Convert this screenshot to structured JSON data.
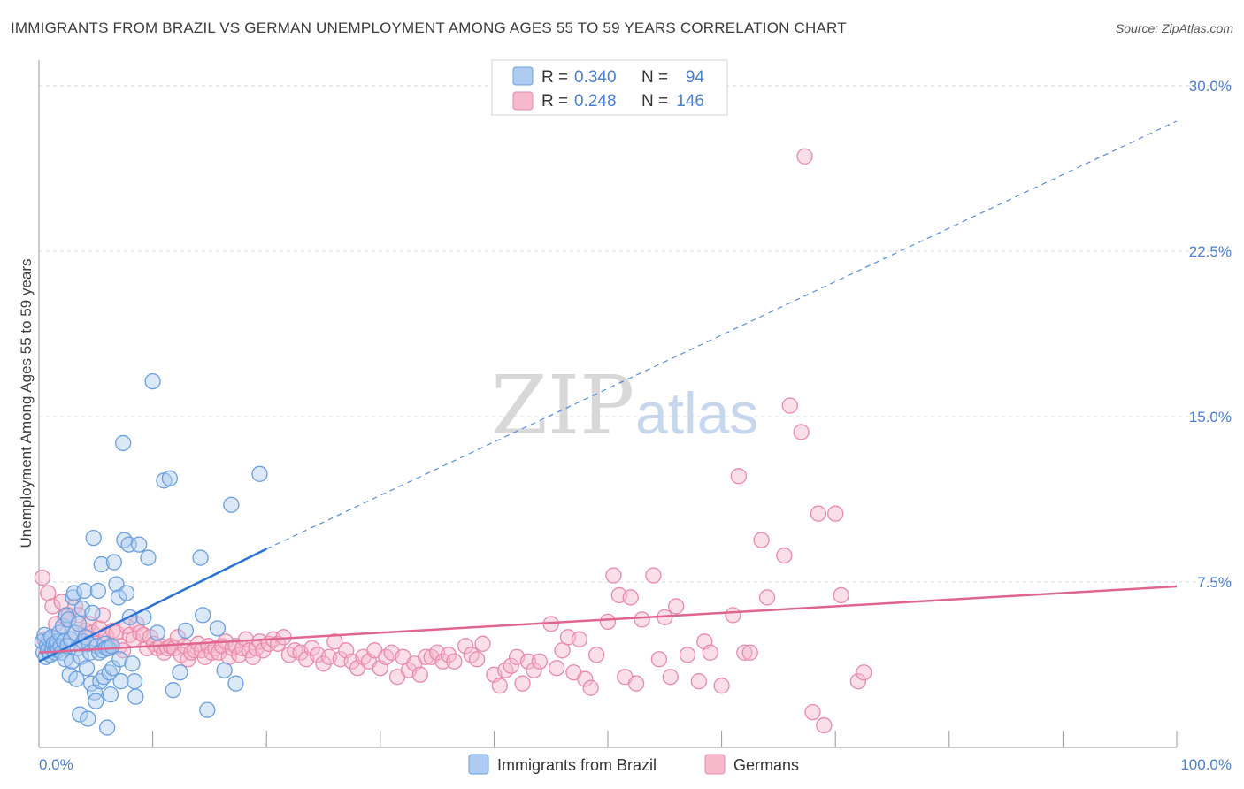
{
  "title": "IMMIGRANTS FROM BRAZIL VS GERMAN UNEMPLOYMENT AMONG AGES 55 TO 59 YEARS CORRELATION CHART",
  "source": "Source: ZipAtlas.com",
  "watermark": {
    "zip": "ZIP",
    "atlas": "atlas"
  },
  "colors": {
    "blue_fill": "#aecbf0",
    "blue_stroke": "#6a9fe0",
    "blue_line": "#2a72d6",
    "pink_fill": "#f6b9cc",
    "pink_stroke": "#e98aa8",
    "pink_line": "#e06590",
    "tick": "#4a7fd0",
    "grid": "#d8d8d8"
  },
  "legend": {
    "rows": [
      {
        "r_label": "R =",
        "r_value": "0.340",
        "n_label": "N =",
        "n_value": "94"
      },
      {
        "r_label": "R =",
        "r_value": "0.248",
        "n_label": "N =",
        "n_value": "146"
      }
    ]
  },
  "chart_data": {
    "type": "scatter",
    "title": "IMMIGRANTS FROM BRAZIL VS GERMAN UNEMPLOYMENT AMONG AGES 55 TO 59 YEARS CORRELATION CHART",
    "xlabel": "",
    "ylabel": "Unemployment Among Ages 55 to 59 years",
    "xlim": [
      0,
      100
    ],
    "ylim": [
      0,
      30
    ],
    "x_tick_labels": {
      "min": "0.0%",
      "max": "100.0%"
    },
    "y_ticks": [
      7.5,
      15.0,
      22.5,
      30.0
    ],
    "y_tick_labels": [
      "7.5%",
      "15.0%",
      "22.5%",
      "30.0%"
    ],
    "grid": true,
    "series": [
      {
        "name": "Immigrants from Brazil",
        "color": "blue",
        "trend": {
          "x0": 0,
          "y0": 3.9,
          "x1": 20,
          "y1": 9.0,
          "dashed_to_x": 100,
          "dashed_to_y": 28.4
        },
        "points": [
          [
            0.3,
            4.8
          ],
          [
            0.4,
            4.3
          ],
          [
            0.5,
            5.1
          ],
          [
            0.6,
            4.1
          ],
          [
            0.7,
            4.6
          ],
          [
            0.8,
            4.4
          ],
          [
            0.9,
            4.9
          ],
          [
            1.0,
            4.2
          ],
          [
            1.1,
            5.0
          ],
          [
            1.2,
            4.5
          ],
          [
            1.3,
            4.7
          ],
          [
            1.4,
            4.3
          ],
          [
            1.5,
            4.6
          ],
          [
            1.6,
            4.8
          ],
          [
            1.7,
            4.4
          ],
          [
            1.8,
            5.2
          ],
          [
            1.9,
            4.6
          ],
          [
            2.0,
            4.3
          ],
          [
            2.1,
            5.5
          ],
          [
            2.2,
            4.8
          ],
          [
            2.3,
            4.0
          ],
          [
            2.4,
            6.0
          ],
          [
            2.5,
            4.6
          ],
          [
            2.6,
            5.8
          ],
          [
            2.7,
            3.3
          ],
          [
            2.8,
            4.9
          ],
          [
            2.9,
            3.9
          ],
          [
            3.0,
            6.8
          ],
          [
            3.1,
            7.0
          ],
          [
            3.2,
            5.2
          ],
          [
            3.3,
            3.1
          ],
          [
            3.4,
            4.5
          ],
          [
            3.5,
            5.6
          ],
          [
            3.6,
            1.5
          ],
          [
            3.7,
            4.1
          ],
          [
            3.8,
            6.3
          ],
          [
            3.9,
            4.8
          ],
          [
            4.0,
            7.1
          ],
          [
            4.1,
            5.0
          ],
          [
            4.2,
            3.6
          ],
          [
            4.3,
            1.3
          ],
          [
            4.4,
            4.7
          ],
          [
            4.5,
            4.3
          ],
          [
            4.6,
            2.9
          ],
          [
            4.7,
            6.1
          ],
          [
            4.8,
            9.5
          ],
          [
            4.9,
            2.5
          ],
          [
            5.0,
            2.1
          ],
          [
            5.1,
            4.6
          ],
          [
            5.2,
            7.1
          ],
          [
            5.3,
            4.3
          ],
          [
            5.4,
            3.0
          ],
          [
            5.5,
            8.3
          ],
          [
            5.6,
            4.4
          ],
          [
            5.7,
            3.2
          ],
          [
            5.8,
            4.7
          ],
          [
            5.9,
            4.5
          ],
          [
            6.0,
            0.9
          ],
          [
            6.1,
            4.5
          ],
          [
            6.2,
            3.4
          ],
          [
            6.3,
            2.4
          ],
          [
            6.4,
            4.6
          ],
          [
            6.5,
            3.6
          ],
          [
            6.6,
            8.4
          ],
          [
            6.8,
            7.4
          ],
          [
            7.0,
            6.8
          ],
          [
            7.1,
            4.0
          ],
          [
            7.2,
            3.0
          ],
          [
            7.4,
            13.8
          ],
          [
            7.5,
            9.4
          ],
          [
            7.7,
            7.0
          ],
          [
            7.9,
            9.2
          ],
          [
            8.0,
            5.9
          ],
          [
            8.2,
            3.8
          ],
          [
            8.4,
            3.0
          ],
          [
            8.5,
            2.3
          ],
          [
            8.8,
            9.2
          ],
          [
            9.2,
            5.9
          ],
          [
            9.6,
            8.6
          ],
          [
            10.0,
            16.6
          ],
          [
            10.4,
            5.2
          ],
          [
            11.0,
            12.1
          ],
          [
            11.5,
            12.2
          ],
          [
            11.8,
            2.6
          ],
          [
            12.4,
            3.4
          ],
          [
            12.9,
            5.3
          ],
          [
            14.2,
            8.6
          ],
          [
            14.4,
            6.0
          ],
          [
            14.8,
            1.7
          ],
          [
            15.7,
            5.4
          ],
          [
            16.3,
            3.5
          ],
          [
            16.9,
            11.0
          ],
          [
            17.3,
            2.9
          ],
          [
            19.4,
            12.4
          ]
        ]
      },
      {
        "name": "Germans",
        "color": "pink",
        "trend": {
          "x0": 0,
          "y0": 4.3,
          "x1": 100,
          "y1": 7.3
        },
        "points": [
          [
            0.3,
            7.7
          ],
          [
            0.5,
            4.9
          ],
          [
            0.8,
            7.0
          ],
          [
            1.2,
            6.4
          ],
          [
            1.5,
            5.6
          ],
          [
            1.8,
            4.6
          ],
          [
            2.0,
            6.6
          ],
          [
            2.3,
            5.9
          ],
          [
            2.6,
            6.0
          ],
          [
            2.9,
            5.2
          ],
          [
            3.2,
            6.4
          ],
          [
            3.5,
            6.0
          ],
          [
            3.8,
            4.7
          ],
          [
            4.1,
            5.3
          ],
          [
            4.4,
            5.6
          ],
          [
            4.7,
            5.2
          ],
          [
            5.0,
            4.7
          ],
          [
            5.3,
            5.4
          ],
          [
            5.6,
            6.0
          ],
          [
            5.9,
            5.1
          ],
          [
            6.2,
            4.6
          ],
          [
            6.5,
            5.3
          ],
          [
            6.8,
            5.2
          ],
          [
            7.1,
            4.6
          ],
          [
            7.4,
            4.4
          ],
          [
            7.7,
            5.5
          ],
          [
            8.0,
            5.1
          ],
          [
            8.3,
            4.9
          ],
          [
            8.6,
            5.6
          ],
          [
            8.9,
            5.2
          ],
          [
            9.2,
            5.1
          ],
          [
            9.5,
            4.5
          ],
          [
            9.8,
            5.0
          ],
          [
            10.1,
            4.7
          ],
          [
            10.4,
            4.5
          ],
          [
            10.7,
            4.6
          ],
          [
            11.0,
            4.3
          ],
          [
            11.3,
            4.5
          ],
          [
            11.6,
            4.6
          ],
          [
            11.9,
            4.5
          ],
          [
            12.2,
            5.0
          ],
          [
            12.5,
            4.2
          ],
          [
            12.8,
            4.6
          ],
          [
            13.1,
            4.0
          ],
          [
            13.4,
            4.3
          ],
          [
            13.7,
            4.4
          ],
          [
            14.0,
            4.7
          ],
          [
            14.3,
            4.4
          ],
          [
            14.6,
            4.1
          ],
          [
            14.9,
            4.6
          ],
          [
            15.2,
            4.3
          ],
          [
            15.5,
            4.5
          ],
          [
            15.8,
            4.3
          ],
          [
            16.1,
            4.6
          ],
          [
            16.4,
            4.8
          ],
          [
            16.7,
            4.1
          ],
          [
            17.0,
            4.5
          ],
          [
            17.3,
            4.6
          ],
          [
            17.6,
            4.2
          ],
          [
            17.9,
            4.5
          ],
          [
            18.2,
            4.9
          ],
          [
            18.5,
            4.4
          ],
          [
            18.8,
            4.1
          ],
          [
            19.1,
            4.5
          ],
          [
            19.4,
            4.8
          ],
          [
            19.7,
            4.4
          ],
          [
            20.2,
            4.7
          ],
          [
            20.6,
            4.9
          ],
          [
            21.0,
            4.7
          ],
          [
            21.5,
            5.0
          ],
          [
            22.0,
            4.2
          ],
          [
            22.5,
            4.4
          ],
          [
            23.0,
            4.3
          ],
          [
            23.5,
            4.0
          ],
          [
            24.0,
            4.5
          ],
          [
            24.5,
            4.2
          ],
          [
            25.0,
            3.8
          ],
          [
            25.5,
            4.1
          ],
          [
            26.0,
            4.8
          ],
          [
            26.5,
            4.0
          ],
          [
            27.0,
            4.4
          ],
          [
            27.5,
            3.9
          ],
          [
            28.0,
            3.6
          ],
          [
            28.5,
            4.1
          ],
          [
            29.0,
            3.9
          ],
          [
            29.5,
            4.4
          ],
          [
            30.0,
            3.6
          ],
          [
            30.5,
            4.1
          ],
          [
            31.0,
            4.3
          ],
          [
            31.5,
            3.2
          ],
          [
            32.0,
            4.1
          ],
          [
            32.5,
            3.5
          ],
          [
            33.0,
            3.8
          ],
          [
            33.5,
            3.3
          ],
          [
            34.0,
            4.1
          ],
          [
            34.5,
            4.1
          ],
          [
            35.0,
            4.3
          ],
          [
            35.5,
            3.9
          ],
          [
            36.0,
            4.2
          ],
          [
            36.5,
            3.9
          ],
          [
            37.5,
            4.6
          ],
          [
            38.0,
            4.2
          ],
          [
            38.5,
            4.0
          ],
          [
            39.0,
            4.7
          ],
          [
            40.0,
            3.3
          ],
          [
            40.5,
            2.8
          ],
          [
            41.0,
            3.5
          ],
          [
            41.5,
            3.7
          ],
          [
            42.0,
            4.1
          ],
          [
            42.5,
            2.9
          ],
          [
            43.0,
            3.9
          ],
          [
            43.5,
            3.5
          ],
          [
            44.0,
            3.9
          ],
          [
            45.0,
            5.6
          ],
          [
            45.5,
            3.6
          ],
          [
            46.0,
            4.4
          ],
          [
            46.5,
            5.0
          ],
          [
            47.0,
            3.4
          ],
          [
            47.5,
            4.9
          ],
          [
            48.0,
            3.1
          ],
          [
            48.5,
            2.7
          ],
          [
            49.0,
            4.2
          ],
          [
            50.0,
            5.7
          ],
          [
            50.5,
            7.8
          ],
          [
            51.0,
            6.9
          ],
          [
            51.5,
            3.2
          ],
          [
            52.0,
            6.8
          ],
          [
            52.5,
            2.9
          ],
          [
            53.0,
            5.8
          ],
          [
            54.0,
            7.8
          ],
          [
            54.5,
            4.0
          ],
          [
            55.0,
            5.9
          ],
          [
            55.5,
            3.2
          ],
          [
            56.0,
            6.4
          ],
          [
            57.0,
            4.2
          ],
          [
            58.0,
            3.0
          ],
          [
            58.5,
            4.8
          ],
          [
            59.0,
            4.3
          ],
          [
            60.0,
            2.8
          ],
          [
            61.0,
            6.0
          ],
          [
            61.5,
            12.3
          ],
          [
            62.0,
            4.3
          ],
          [
            62.5,
            4.3
          ],
          [
            63.5,
            9.4
          ],
          [
            64.0,
            6.8
          ],
          [
            65.5,
            8.7
          ],
          [
            66.0,
            15.5
          ],
          [
            67.0,
            14.3
          ],
          [
            67.3,
            26.8
          ],
          [
            68.5,
            10.6
          ],
          [
            68.0,
            1.6
          ],
          [
            69.0,
            1.0
          ],
          [
            70.0,
            10.6
          ],
          [
            70.5,
            6.9
          ],
          [
            72.0,
            3.0
          ],
          [
            72.5,
            3.4
          ]
        ]
      }
    ]
  },
  "bottom_legend": {
    "items": [
      "Immigrants from Brazil",
      "Germans"
    ]
  }
}
